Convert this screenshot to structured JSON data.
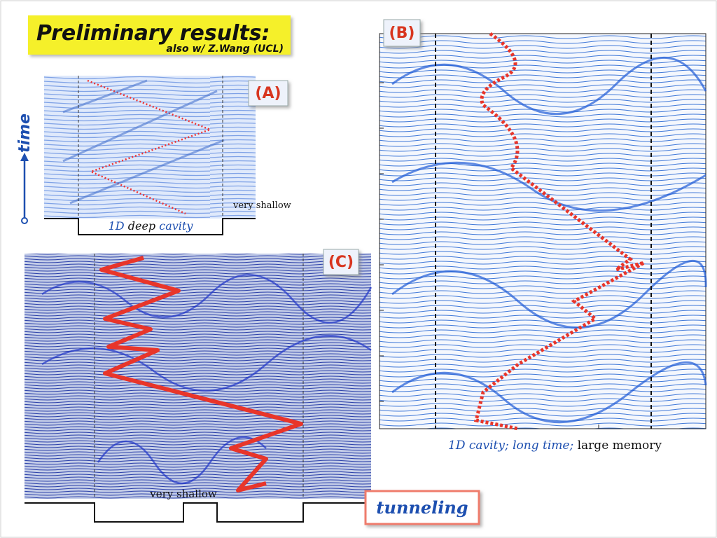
{
  "header": {
    "title": "Preliminary results:",
    "subtitle": "also w/ Z.Wang (UCL)"
  },
  "side_label": "time",
  "panels": [
    {
      "label": "(A)",
      "caption": [
        "1D",
        "deep",
        "cavity"
      ],
      "note": "very shallow"
    },
    {
      "label": "(B)",
      "caption": [
        "1D cavity; long time;",
        "large memory"
      ]
    },
    {
      "label": "(C)",
      "note": "very shallow",
      "callout": "tunneling"
    }
  ]
}
